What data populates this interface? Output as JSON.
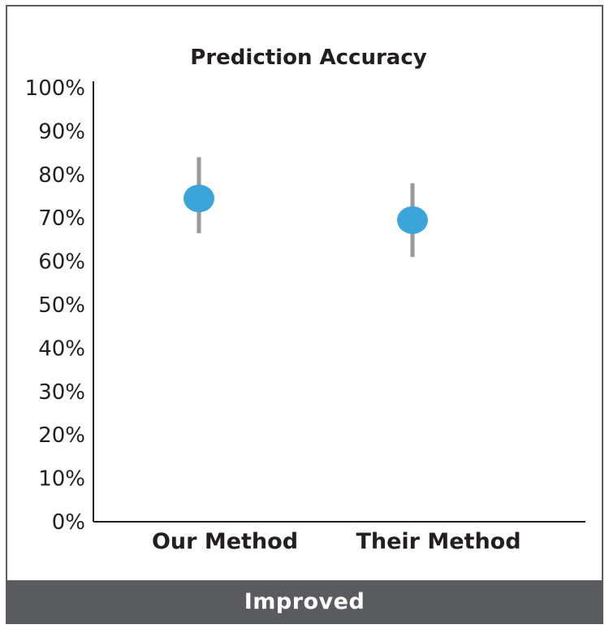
{
  "chart_data": {
    "type": "scatter",
    "title": "Prediction Accuracy",
    "categories": [
      "Our Method",
      "Their Method"
    ],
    "values": [
      74.5,
      69.5
    ],
    "error_low": [
      66.5,
      61
    ],
    "error_high": [
      84,
      78
    ],
    "y_tick_labels": [
      "0%",
      "10%",
      "20%",
      "30%",
      "40%",
      "50%",
      "60%",
      "70%",
      "80%",
      "90%",
      "100%"
    ],
    "ylim": [
      0,
      100
    ],
    "xlabel": "",
    "ylabel": "",
    "grid": false,
    "colors": {
      "point": "#3ba4d9",
      "error_bar": "#969a99",
      "axis": "#231f20"
    }
  },
  "footer": {
    "label": "Improved"
  }
}
